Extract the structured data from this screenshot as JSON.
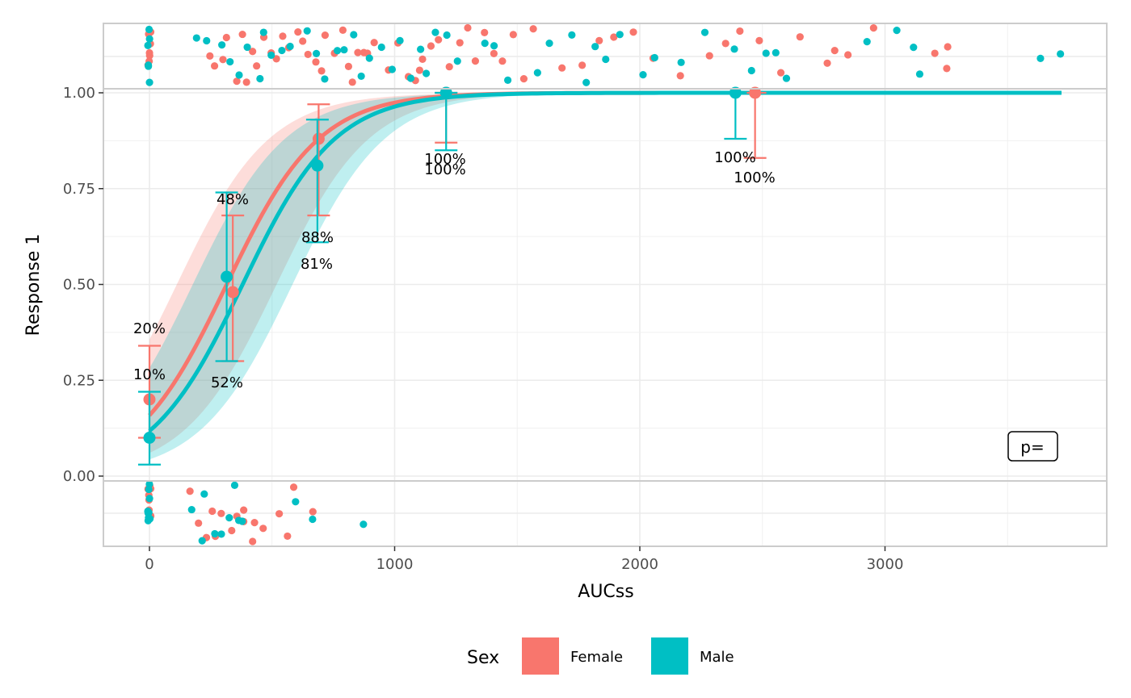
{
  "chart_data": {
    "type": "scatter",
    "xlabel": "AUCss",
    "ylabel": "Response 1",
    "xlim": [
      -185,
      3900
    ],
    "ylim": [
      -0.175,
      1.175
    ],
    "x_ticks": [
      0,
      1000,
      2000,
      3000
    ],
    "x_tick_labels": [
      "0",
      "1000",
      "2000",
      "3000"
    ],
    "y_ticks": [
      0,
      0.25,
      0.5,
      0.75,
      1
    ],
    "y_tick_labels": [
      "0.00",
      "0.25",
      "0.50",
      "0.75",
      "1.00"
    ],
    "grid": true,
    "legend": {
      "title": "Sex",
      "position": "bottom",
      "entries": [
        "Female",
        "Male"
      ]
    },
    "p_value_label": "p=",
    "colors": {
      "Female": "#F8766D",
      "Male": "#00BFC4"
    },
    "series": [
      {
        "name": "Female",
        "logistic_fit": {
          "x0": 315,
          "k": 0.0053
        },
        "x_range": [
          0,
          3720
        ],
        "binned_means": [
          {
            "x": 0,
            "y": 0.2,
            "lo": 0.1,
            "hi": 0.34,
            "label": "20%"
          },
          {
            "x": 340,
            "y": 0.48,
            "lo": 0.3,
            "hi": 0.68,
            "label": "48%"
          },
          {
            "x": 690,
            "y": 0.88,
            "lo": 0.68,
            "hi": 0.97,
            "label": "88%"
          },
          {
            "x": 1210,
            "y": 1.0,
            "lo": 0.87,
            "hi": 1.0,
            "label": "100%"
          },
          {
            "x": 2470,
            "y": 1.0,
            "lo": 0.83,
            "hi": 1.0,
            "label": "100%"
          }
        ],
        "responders_x": [
          0,
          0,
          0,
          0,
          0,
          0,
          0,
          250,
          270,
          300,
          320,
          350,
          380,
          400,
          420,
          440,
          460,
          500,
          520,
          540,
          570,
          600,
          620,
          650,
          680,
          700,
          720,
          760,
          790,
          810,
          830,
          850,
          870,
          890,
          920,
          980,
          1010,
          1050,
          1080,
          1100,
          1120,
          1150,
          1180,
          1220,
          1260,
          1300,
          1330,
          1360,
          1400,
          1440,
          1480,
          1530,
          1570,
          1680,
          1760,
          1830,
          1900,
          1980,
          2050,
          2170,
          2290,
          2350,
          2410,
          2490,
          2580,
          2660,
          2770,
          2800,
          2850,
          2950,
          3200,
          3250,
          3250
        ],
        "nonresponders_x": [
          0,
          0,
          0,
          0,
          0,
          0,
          0,
          0,
          160,
          200,
          230,
          250,
          270,
          290,
          330,
          350,
          380,
          390,
          420,
          430,
          460,
          530,
          560,
          590,
          660
        ]
      },
      {
        "name": "Male",
        "logistic_fit": {
          "x0": 380,
          "k": 0.0053
        },
        "x_range": [
          0,
          3720
        ],
        "binned_means": [
          {
            "x": 0,
            "y": 0.1,
            "lo": 0.03,
            "hi": 0.22,
            "label": "10%"
          },
          {
            "x": 315,
            "y": 0.52,
            "lo": 0.3,
            "hi": 0.74,
            "label": "52%"
          },
          {
            "x": 685,
            "y": 0.81,
            "lo": 0.61,
            "hi": 0.93,
            "label": "81%"
          },
          {
            "x": 1210,
            "y": 1.0,
            "lo": 0.85,
            "hi": 1.0,
            "label": "100%"
          },
          {
            "x": 2390,
            "y": 1.0,
            "lo": 0.88,
            "hi": 1.0,
            "label": "100%"
          }
        ],
        "responders_x": [
          0,
          0,
          0,
          0,
          0,
          0,
          190,
          230,
          290,
          330,
          370,
          400,
          450,
          470,
          500,
          540,
          580,
          640,
          680,
          720,
          770,
          800,
          830,
          870,
          900,
          950,
          990,
          1020,
          1060,
          1100,
          1130,
          1170,
          1210,
          1250,
          1370,
          1410,
          1460,
          1580,
          1630,
          1720,
          1780,
          1820,
          1860,
          1920,
          2010,
          2060,
          2170,
          2270,
          2380,
          2450,
          2510,
          2560,
          2600,
          2930,
          3050,
          3110,
          3140,
          3640,
          3720
        ],
        "nonresponders_x": [
          0,
          0,
          0,
          0,
          0,
          0,
          0,
          0,
          0,
          170,
          210,
          230,
          260,
          290,
          320,
          350,
          370,
          380,
          590,
          670,
          870
        ]
      }
    ]
  }
}
